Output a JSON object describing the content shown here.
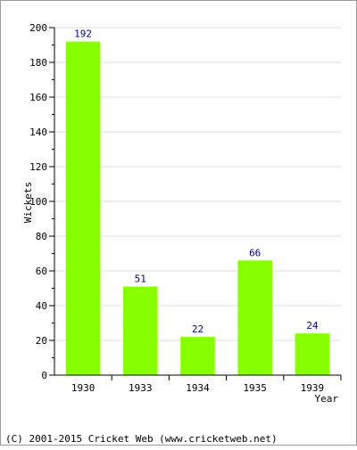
{
  "chart_data": {
    "type": "bar",
    "title": "",
    "xlabel": "Year",
    "ylabel": "Wickets",
    "categories": [
      "1930",
      "1933",
      "1934",
      "1935",
      "1939"
    ],
    "values": [
      192,
      51,
      22,
      66,
      24
    ],
    "data_labels": [
      "192",
      "51",
      "22",
      "66",
      "24"
    ],
    "ylim": [
      0,
      200
    ],
    "yticks": [
      0,
      20,
      40,
      60,
      80,
      100,
      120,
      140,
      160,
      180,
      200
    ],
    "ytick_labels": [
      "0",
      "20",
      "40",
      "60",
      "80",
      "100",
      "120",
      "140",
      "160",
      "180",
      "200"
    ],
    "grid": true,
    "colors": {
      "bar": "#88ff00",
      "data_label": "#000080",
      "grid": "#dcdcdc",
      "axis": "#000000"
    }
  },
  "footer": {
    "copyright": "(C) 2001-2015 Cricket Web (www.cricketweb.net)"
  }
}
